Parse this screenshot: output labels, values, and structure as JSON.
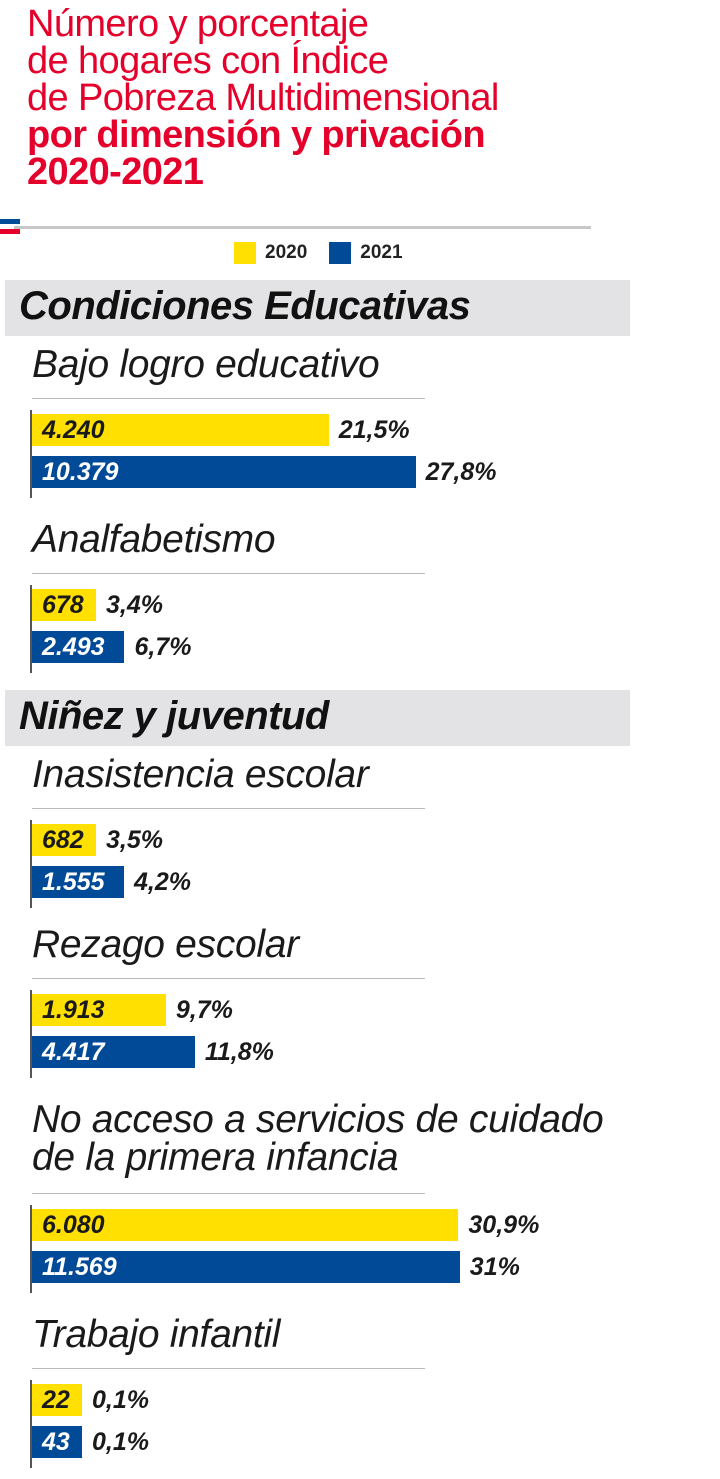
{
  "title": {
    "lines": [
      "Número y porcentaje",
      "de hogares con Índice",
      "de Pobreza Multidimensional"
    ],
    "bold_lines": [
      "por dimensión y privación",
      "2020-2021"
    ],
    "color": "#e4002b"
  },
  "legend": [
    {
      "name": "2020",
      "color": "#ffe000"
    },
    {
      "name": "2021",
      "color": "#004a98"
    }
  ],
  "chart_data": {
    "type": "bar",
    "orientation": "horizontal",
    "series_names": [
      "2020",
      "2021"
    ],
    "groups": [
      {
        "name": "Condiciones Educativas",
        "indicators": [
          {
            "label": [
              "Bajo logro educativo"
            ],
            "values": [
              {
                "year": "2020",
                "count": "4.240",
                "percent": 21.5,
                "percent_label": "21,5%"
              },
              {
                "year": "2021",
                "count": "10.379",
                "percent": 27.8,
                "percent_label": "27,8%"
              }
            ]
          },
          {
            "label": [
              "Analfabetismo"
            ],
            "values": [
              {
                "year": "2020",
                "count": "678",
                "percent": 3.4,
                "percent_label": "3,4%"
              },
              {
                "year": "2021",
                "count": "2.493",
                "percent": 6.7,
                "percent_label": "6,7%"
              }
            ]
          }
        ]
      },
      {
        "name": "Niñez y juventud",
        "indicators": [
          {
            "label": [
              "Inasistencia escolar"
            ],
            "values": [
              {
                "year": "2020",
                "count": "682",
                "percent": 3.5,
                "percent_label": "3,5%"
              },
              {
                "year": "2021",
                "count": "1.555",
                "percent": 4.2,
                "percent_label": "4,2%"
              }
            ]
          },
          {
            "label": [
              "Rezago escolar"
            ],
            "values": [
              {
                "year": "2020",
                "count": "1.913",
                "percent": 9.7,
                "percent_label": "9,7%"
              },
              {
                "year": "2021",
                "count": "4.417",
                "percent": 11.8,
                "percent_label": "11,8%"
              }
            ]
          },
          {
            "label": [
              "No acceso a servicios de cuidado",
              "de la primera infancia"
            ],
            "values": [
              {
                "year": "2020",
                "count": "6.080",
                "percent": 30.9,
                "percent_label": "30,9%"
              },
              {
                "year": "2021",
                "count": "11.569",
                "percent": 31,
                "percent_label": "31%"
              }
            ]
          },
          {
            "label": [
              "Trabajo infantil"
            ],
            "values": [
              {
                "year": "2020",
                "count": "22",
                "percent": 0.1,
                "percent_label": "0,1%"
              },
              {
                "year": "2021",
                "count": "43",
                "percent": 0.1,
                "percent_label": "0,1%"
              }
            ]
          }
        ]
      }
    ]
  }
}
